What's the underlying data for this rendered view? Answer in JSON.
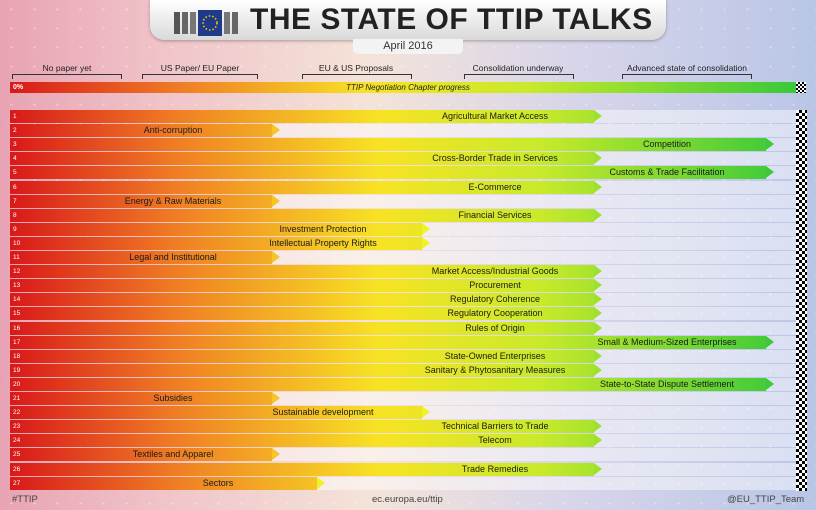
{
  "header": {
    "title": "THE STATE OF TTIP TALKS",
    "subtitle": "April 2016"
  },
  "stages": [
    "No paper yet",
    "US Paper/ EU Paper",
    "EU & US Proposals",
    "Consolidation underway",
    "Advanced state of consolidation"
  ],
  "progress_bar": {
    "label": "TTIP Negotiation Chapter progress",
    "start_label": "0%"
  },
  "chart_data": {
    "type": "bar",
    "orientation": "horizontal",
    "value_scale": "stage reached (0 = No paper yet … 4 = Advanced state of consolidation)",
    "categories": [
      "Agricultural Market Access",
      "Anti-corruption",
      "Competition",
      "Cross-Border Trade in Services",
      "Customs & Trade Facilitation",
      "E-Commerce",
      "Energy & Raw Materials",
      "Financial Services",
      "Investment Protection",
      "Intellectual Property Rights",
      "Legal and Institutional",
      "Market Access/Industrial Goods",
      "Procurement",
      "Regulatory Coherence",
      "Regulatory Cooperation",
      "Rules of Origin",
      "Small & Medium-Sized Enterprises",
      "State-Owned Enterprises",
      "Sanitary & Phytosanitary Measures",
      "State-to-State Dispute Settlement",
      "Subsidies",
      "Sustainable development",
      "Technical Barriers to Trade",
      "Telecom",
      "Textiles and Apparel",
      "Trade Remedies",
      "Sectors"
    ],
    "values": [
      3,
      1,
      4,
      3,
      4,
      3,
      1,
      3,
      2,
      2,
      1,
      3,
      3,
      3,
      3,
      3,
      4,
      3,
      3,
      4,
      1,
      2,
      3,
      3,
      1,
      3,
      1.3
    ],
    "row_numbers": [
      "1",
      "2",
      "3",
      "4",
      "5",
      "6",
      "7",
      "8",
      "9",
      "10",
      "11",
      "12",
      "13",
      "14",
      "15",
      "16",
      "17",
      "18",
      "19",
      "20",
      "21",
      "22",
      "23",
      "24",
      "25",
      "26",
      "27"
    ]
  },
  "footer": {
    "hashtag": "#TTIP",
    "url": "ec.europa.eu/ttip",
    "handle": "@EU_TTIP_Team"
  }
}
